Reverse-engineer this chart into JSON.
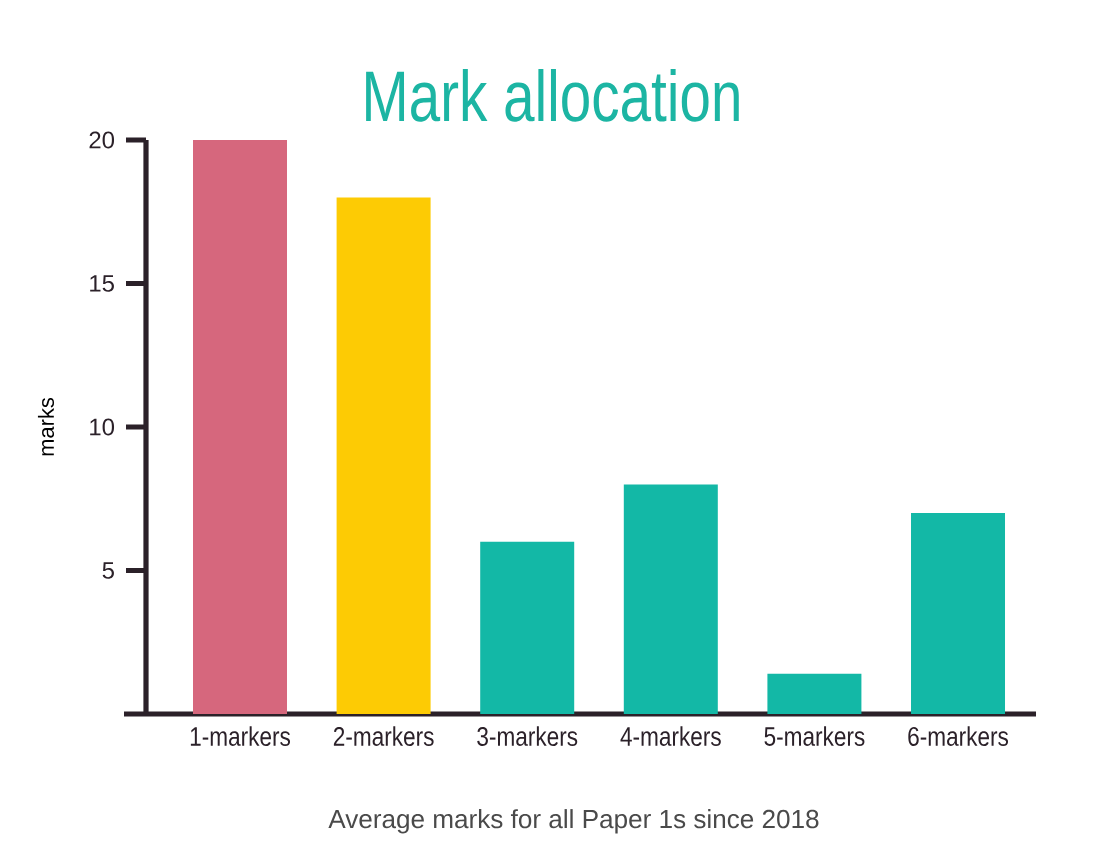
{
  "chart_data": {
    "type": "bar",
    "title": "Mark allocation",
    "ylabel": "marks",
    "categories": [
      "1-markers",
      "2-markers",
      "3-markers",
      "4-markers",
      "5-markers",
      "6-markers"
    ],
    "values": [
      20,
      18,
      6,
      8,
      1.4,
      7
    ],
    "colors": [
      "#d6677d",
      "#fdcb04",
      "#13b8a6",
      "#13b8a6",
      "#13b8a6",
      "#13b8a6"
    ],
    "ylim": [
      0,
      20
    ],
    "yticks": [
      5,
      10,
      15,
      20
    ],
    "annotations": [
      "Average marks for all Paper 1s since 2018"
    ]
  }
}
